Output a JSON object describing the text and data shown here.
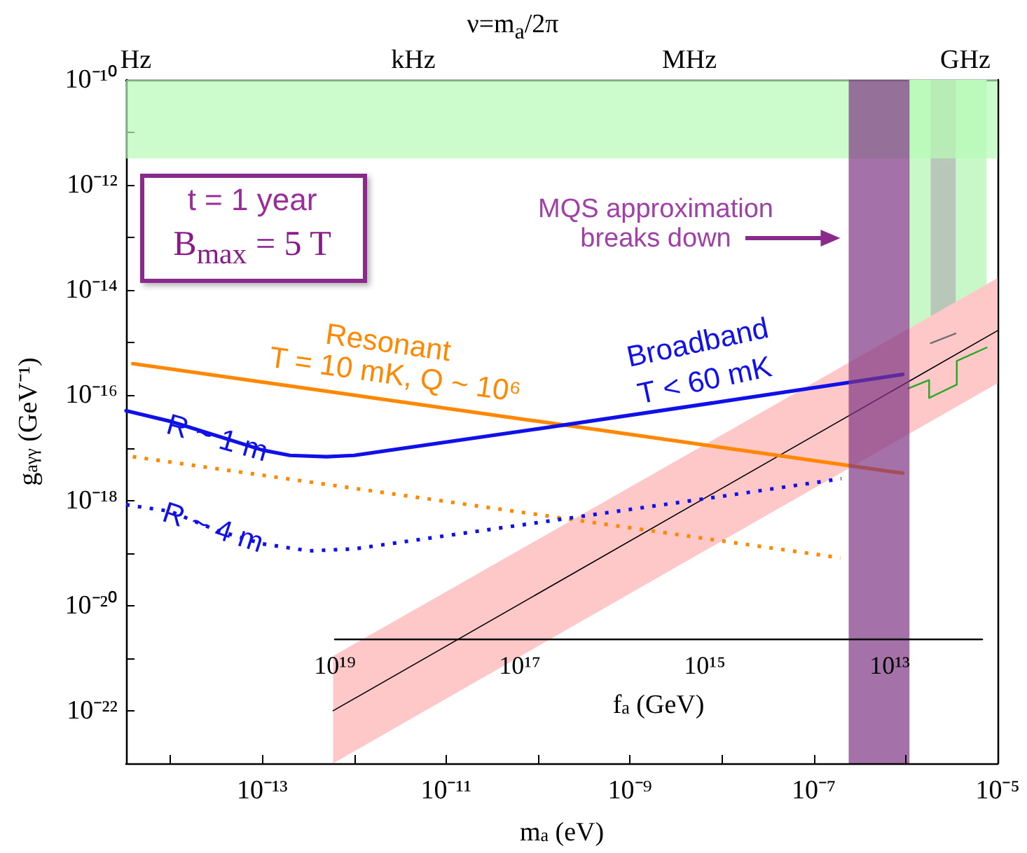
{
  "chart_data": {
    "type": "line",
    "log": "xy",
    "marker": "none",
    "xlabel": "m$_{a}$ (eV)",
    "ylabel": "g$_{aγγ}$ (GeV⁻¹)",
    "xlim": [
      3.3e-15,
      1e-05
    ],
    "ylim": [
      1e-23,
      1e-10
    ],
    "xticks": [
      {
        "value": 1e-14,
        "label": null
      },
      {
        "value": 1e-13,
        "label": "10⁻¹³"
      },
      {
        "value": 1e-12,
        "label": null
      },
      {
        "value": 1e-11,
        "label": "10⁻¹¹"
      },
      {
        "value": 1e-10,
        "label": null
      },
      {
        "value": 1e-09,
        "label": "10⁻⁹"
      },
      {
        "value": 1e-08,
        "label": null
      },
      {
        "value": 1e-07,
        "label": "10⁻⁷"
      },
      {
        "value": 1e-06,
        "label": null
      },
      {
        "value": 1e-05,
        "label": "10⁻⁵"
      }
    ],
    "yticks": [
      {
        "value": 1e-22,
        "label": "10⁻²²"
      },
      {
        "value": 1e-21,
        "label": null
      },
      {
        "value": 1e-20,
        "label": "10⁻²⁰"
      },
      {
        "value": 1e-19,
        "label": null
      },
      {
        "value": 1e-18,
        "label": "10⁻¹⁸"
      },
      {
        "value": 1e-17,
        "label": null
      },
      {
        "value": 1e-16,
        "label": "10⁻¹⁶"
      },
      {
        "value": 1e-15,
        "label": null
      },
      {
        "value": 1e-14,
        "label": "10⁻¹⁴"
      },
      {
        "value": 1e-13,
        "label": null
      },
      {
        "value": 1e-12,
        "label": "10⁻¹²"
      },
      {
        "value": 1e-11,
        "label": null
      },
      {
        "value": 1e-10,
        "label": "10⁻¹⁰"
      }
    ],
    "series": [
      {
        "color": "#22aa22",
        "line_style": "solid",
        "x": [
          1.07e-06,
          1.8e-06,
          1.8e-06,
          3.6e-06,
          3.6e-06,
          7.6e-06
        ],
        "values": [
          1.35e-16,
          1.95e-16,
          8.9e-17,
          1.6e-16,
          4.5e-16,
          8.1e-16
        ],
        "lower": [
          1.35e-16,
          1.95e-16,
          8.9e-17,
          1.6e-16,
          4.5e-16,
          8.1e-16
        ],
        "upper": [
          1e-10,
          1e-10,
          1e-10,
          1e-10,
          1e-10,
          1e-10
        ]
      },
      {
        "color": "#707070",
        "line_style": "solid",
        "x": [
          1.87e-06,
          3.5e-06
        ],
        "values": [
          9.8e-16,
          1.5e-15
        ],
        "lower": [
          9.8e-16,
          1.5e-15
        ],
        "upper": [
          1e-10,
          1e-10
        ]
      },
      {
        "color": "#000000",
        "line_style": "solid",
        "x": [
          5.9e-13,
          1e-05
        ],
        "values": [
          1e-22,
          1.7e-15
        ],
        "lower": [
          1e-23,
          1.7e-16
        ],
        "upper": [
          1.1e-21,
          1.7e-14
        ]
      },
      {
        "color": "#ff8800",
        "line_style": "solid",
        "x": [
          3.9e-15,
          9.3e-07
        ],
        "values": [
          4e-16,
          3.3e-18
        ]
      },
      {
        "color": "#ff8800",
        "line_style": "dotted",
        "x": [
          3.9e-15,
          1.95e-07
        ],
        "values": [
          6.8e-18,
          8.1e-20
        ]
      },
      {
        "color": "#1010e8",
        "line_style": "solid",
        "x": [
          3.3e-15,
          1e-14,
          3.2e-14,
          1e-13,
          2e-13,
          5e-13,
          1e-12,
          1e-10,
          1e-08,
          9.3e-07
        ],
        "values": [
          5.1e-17,
          3.2e-17,
          1.7e-17,
          9.1e-18,
          7.2e-18,
          6.8e-18,
          7.2e-18,
          2.3e-17,
          7.6e-17,
          2.5e-16
        ]
      },
      {
        "color": "#1010e8",
        "line_style": "dotted",
        "x": [
          3.3e-15,
          1e-14,
          3.2e-14,
          1e-13,
          3.2e-13,
          1e-12,
          1e-10,
          1e-08,
          2e-07
        ],
        "values": [
          8.3e-19,
          6.2e-19,
          2.7e-19,
          1.5e-19,
          1.1e-19,
          1.2e-19,
          3.8e-19,
          1.2e-18,
          2.6e-18
        ]
      }
    ],
    "bands": [
      {
        "axis": "y",
        "from": 3.2e-12,
        "to": 1e-10,
        "color": "#b6fbb6"
      },
      {
        "axis": "x",
        "from": 2.4e-07,
        "to": 1.1e-06,
        "color": "#7d3683"
      }
    ],
    "annotations": [
      "ν=m$_{a}$/2π",
      "Hz",
      "kHz",
      "MHz",
      "GHz",
      "t = 1 year",
      "B$_{max}$ = 5 T",
      "MQS approximation breaks down",
      "Resonant",
      "T = 10 mK, Q ~ 10⁶",
      "Broadband",
      "T < 60 mK",
      "R ~ 1 m",
      "R ~ 4 m",
      "10¹⁹",
      "10¹⁷",
      "10¹⁵",
      "10¹³",
      "f$_{a}$ (GeV)"
    ]
  }
}
